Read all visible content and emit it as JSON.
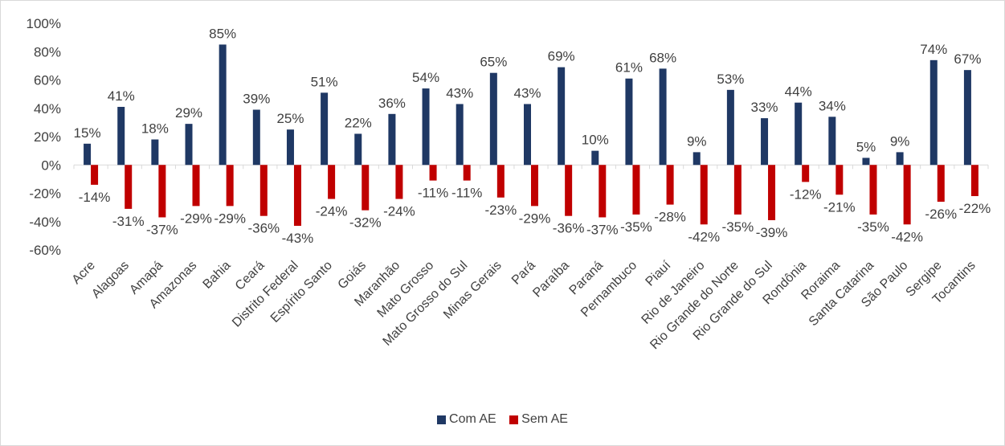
{
  "chart_data": {
    "type": "bar",
    "categories": [
      "Acre",
      "Alagoas",
      "Amapá",
      "Amazonas",
      "Bahia",
      "Ceará",
      "Distrito Federal",
      "Espírito Santo",
      "Goiás",
      "Maranhão",
      "Mato Grosso",
      "Mato Grosso do Sul",
      "Minas Gerais",
      "Pará",
      "Paraíba",
      "Paraná",
      "Pernambuco",
      "Piauí",
      "Rio de Janeiro",
      "Rio Grande do Norte",
      "Rio Grande do Sul",
      "Rondônia",
      "Roraima",
      "Santa Catarina",
      "São Paulo",
      "Sergipe",
      "Tocantins"
    ],
    "series": [
      {
        "name": "Com AE",
        "color": "#1f3864",
        "values": [
          15,
          41,
          18,
          29,
          85,
          39,
          25,
          51,
          22,
          36,
          54,
          43,
          65,
          43,
          69,
          10,
          61,
          68,
          9,
          53,
          33,
          44,
          34,
          5,
          9,
          74,
          67
        ],
        "labels": [
          "15%",
          "41%",
          "18%",
          "29%",
          "85%",
          "39%",
          "25%",
          "51%",
          "22%",
          "36%",
          "54%",
          "43%",
          "65%",
          "43%",
          "69%",
          "10%",
          "61%",
          "68%",
          "9%",
          "53%",
          "33%",
          "44%",
          "34%",
          "5%",
          "9%",
          "74%",
          "67%"
        ]
      },
      {
        "name": "Sem AE",
        "color": "#c00000",
        "values": [
          -14,
          -31,
          -37,
          -29,
          -29,
          -36,
          -43,
          -24,
          -32,
          -24,
          -11,
          -11,
          -23,
          -29,
          -36,
          -37,
          -35,
          -28,
          -42,
          -35,
          -39,
          -12,
          -21,
          -35,
          -42,
          -26,
          -22
        ],
        "labels": [
          "-14%",
          "-31%",
          "-37%",
          "-29%",
          "-29%",
          "-36%",
          "-43%",
          "-24%",
          "-32%",
          "-24%",
          "-11%",
          "-11%",
          "-23%",
          "-29%",
          "-36%",
          "-37%",
          "-35%",
          "-28%",
          "-42%",
          "-35%",
          "-39%",
          "-12%",
          "-21%",
          "-35%",
          "-42%",
          "-26%",
          "-22%"
        ]
      }
    ],
    "ylim": [
      -60,
      100
    ],
    "yticks": [
      100,
      80,
      60,
      40,
      20,
      0,
      -20,
      -40,
      -60
    ],
    "ytick_labels": [
      "100%",
      "80%",
      "60%",
      "40%",
      "20%",
      "0%",
      "-20%",
      "-40%",
      "-60%"
    ],
    "grid": false,
    "legend_position": "bottom"
  }
}
